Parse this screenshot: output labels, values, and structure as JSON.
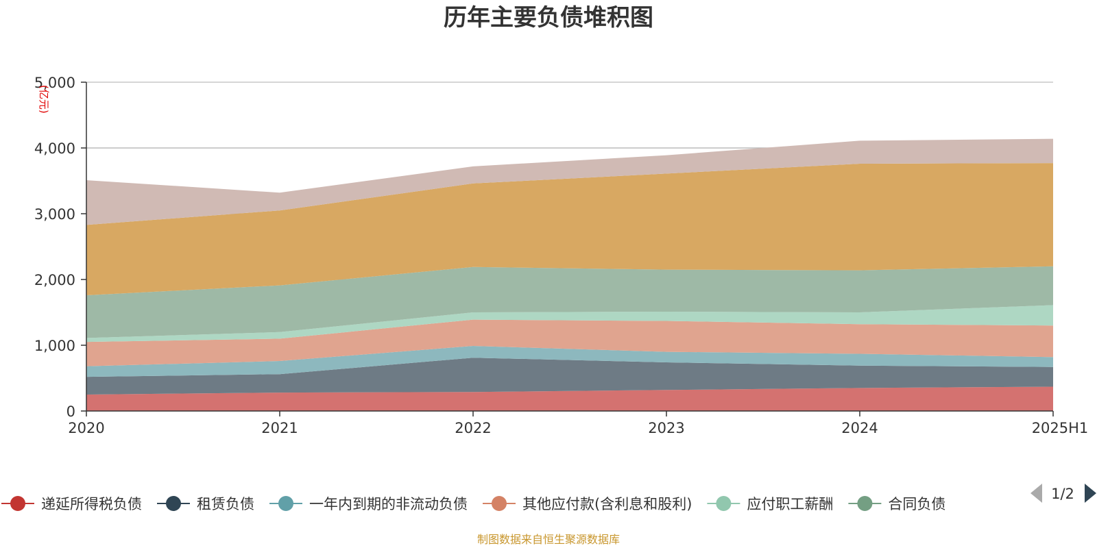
{
  "title": "历年主要负债堆积图",
  "source_note": "制图数据来自恒生聚源数据库",
  "unit_label": "(亿元)",
  "legend_pager": {
    "label": "1/2"
  },
  "chart_data": {
    "type": "area",
    "stacked": true,
    "categories": [
      "2020",
      "2021",
      "2022",
      "2023",
      "2024",
      "2025H1"
    ],
    "ylim": [
      0,
      5000
    ],
    "yticks": [
      0,
      1000,
      2000,
      3000,
      4000,
      5000
    ],
    "ytick_labels": [
      "0",
      "1,000",
      "2,000",
      "3,000",
      "4,000",
      "5,000"
    ],
    "grid": true,
    "legend_position": "bottom",
    "series": [
      {
        "name": "递延所得税负债",
        "color": "#c23531",
        "fill": "#d47270",
        "values": [
          250,
          280,
          290,
          320,
          350,
          370
        ]
      },
      {
        "name": "租赁负债",
        "color": "#2f4554",
        "fill": "#6e7b85",
        "values": [
          270,
          280,
          520,
          420,
          340,
          300
        ]
      },
      {
        "name": "一年内到期的非流动负债",
        "color": "#61a0a8",
        "fill": "#8db8be",
        "values": [
          160,
          200,
          180,
          160,
          180,
          150
        ]
      },
      {
        "name": "其他应付款(含利息和股利)",
        "color": "#d48265",
        "fill": "#e0a48f",
        "values": [
          370,
          340,
          400,
          470,
          450,
          480
        ]
      },
      {
        "name": "应付职工薪酬",
        "color": "#91c7ae",
        "fill": "#aed7c3",
        "values": [
          60,
          100,
          110,
          140,
          180,
          310
        ]
      },
      {
        "name": "合同负债",
        "color": "#749f83",
        "fill": "#9eb9a6",
        "values": [
          650,
          710,
          690,
          640,
          640,
          590
        ]
      },
      {
        "name": "",
        "color": "#ca8622",
        "fill": "#d8a862",
        "values": [
          1070,
          1140,
          1270,
          1460,
          1620,
          1570
        ]
      },
      {
        "name": "",
        "color": "#bda29a",
        "fill": "#d0bab4",
        "values": [
          680,
          270,
          260,
          280,
          350,
          370
        ]
      }
    ]
  }
}
